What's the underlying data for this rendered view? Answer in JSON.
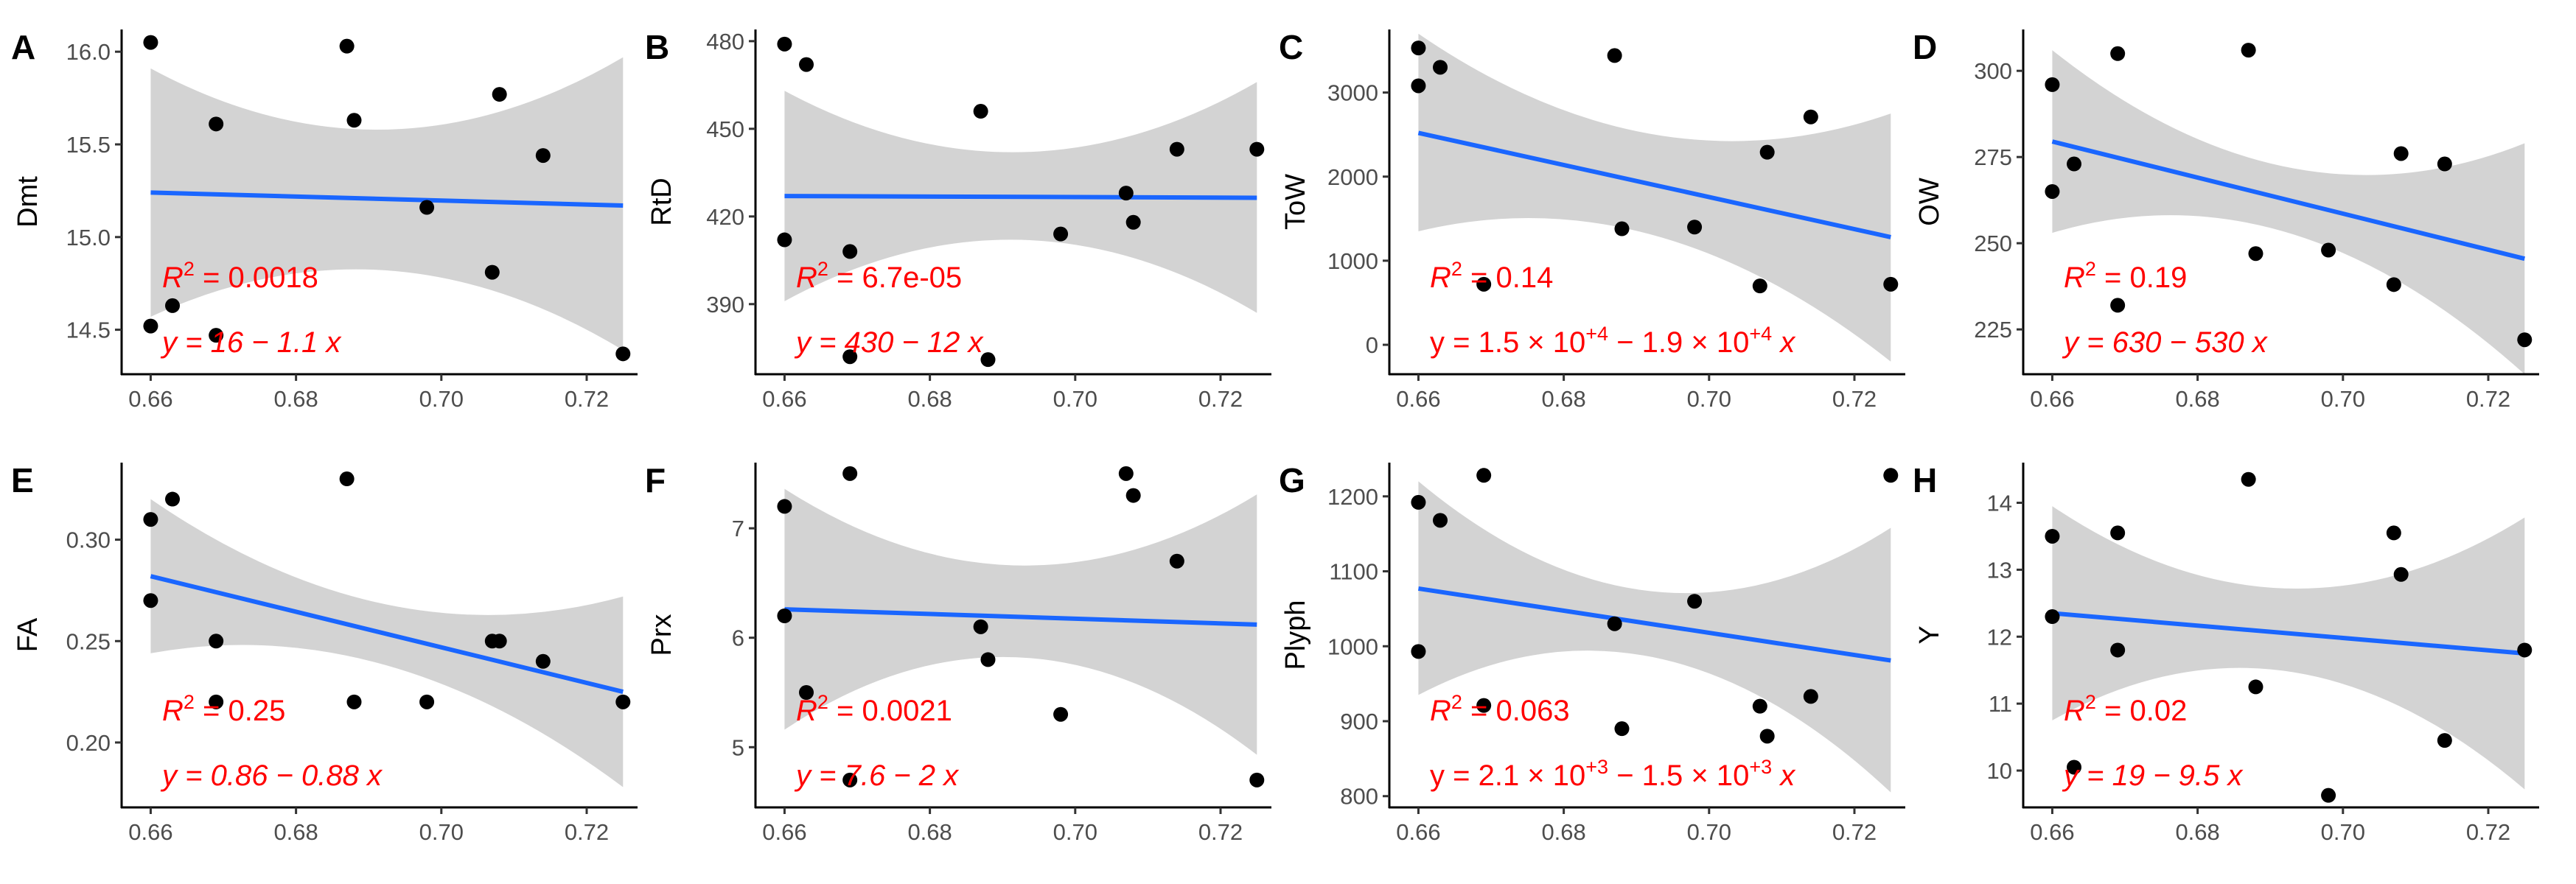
{
  "colors": {
    "fit_line": "#1a66ff",
    "band": "#d3d3d3",
    "points": "#000000",
    "annotation": "#ff0000"
  },
  "chart_data": [
    {
      "type": "scatter",
      "panel": "A",
      "ylabel": "Dmt",
      "xlim": [
        0.656,
        0.727
      ],
      "ylim": [
        14.26,
        16.12
      ],
      "xticks": [
        0.66,
        0.68,
        0.7,
        0.72
      ],
      "xtick_labels": [
        "0.66",
        "0.68",
        "0.70",
        "0.72"
      ],
      "yticks": [
        14.5,
        15.0,
        15.5,
        16.0
      ],
      "ytick_labels": [
        "14.5",
        "15.0",
        "15.5",
        "16.0"
      ],
      "x": [
        0.66,
        0.66,
        0.663,
        0.669,
        0.669,
        0.687,
        0.688,
        0.698,
        0.707,
        0.708,
        0.714,
        0.725
      ],
      "y": [
        16.05,
        14.52,
        14.63,
        14.47,
        15.61,
        16.03,
        15.63,
        15.16,
        14.81,
        15.77,
        15.44,
        14.37
      ],
      "fit": {
        "x": [
          0.66,
          0.725
        ],
        "y": [
          15.24,
          15.17
        ]
      },
      "band": {
        "x": [
          0.66,
          0.6925,
          0.725
        ],
        "upper": [
          15.91,
          15.58,
          15.97
        ],
        "lower": [
          14.57,
          14.82,
          14.39
        ]
      },
      "r2_label": "R",
      "r2_sup": "2",
      "r2_value": " = 0.0018",
      "equation": "y = 16 − 1.1 x"
    },
    {
      "type": "scatter",
      "panel": "B",
      "ylabel": "RtD",
      "xlim": [
        0.656,
        0.727
      ],
      "ylim": [
        366,
        484
      ],
      "xticks": [
        0.66,
        0.68,
        0.7,
        0.72
      ],
      "xtick_labels": [
        "0.66",
        "0.68",
        "0.70",
        "0.72"
      ],
      "yticks": [
        390,
        420,
        450,
        480
      ],
      "ytick_labels": [
        "390",
        "420",
        "450",
        "480"
      ],
      "x": [
        0.66,
        0.66,
        0.663,
        0.669,
        0.669,
        0.687,
        0.688,
        0.698,
        0.707,
        0.708,
        0.714,
        0.725
      ],
      "y": [
        479,
        412,
        472,
        408,
        372,
        456,
        371,
        414,
        428,
        418,
        443,
        443
      ],
      "fit": {
        "x": [
          0.66,
          0.725
        ],
        "y": [
          427.0,
          426.4
        ]
      },
      "band": {
        "x": [
          0.66,
          0.6925,
          0.725
        ],
        "upper": [
          463,
          442,
          466
        ],
        "lower": [
          391,
          412,
          387
        ]
      },
      "r2_label": "R",
      "r2_sup": "2",
      "r2_value": " = 6.7e-05",
      "equation": "y = 430 − 12 x"
    },
    {
      "type": "scatter",
      "panel": "C",
      "ylabel": "ToW",
      "xlim": [
        0.656,
        0.727
      ],
      "ylim": [
        -350,
        3750
      ],
      "xticks": [
        0.66,
        0.68,
        0.7,
        0.72
      ],
      "xtick_labels": [
        "0.66",
        "0.68",
        "0.70",
        "0.72"
      ],
      "yticks": [
        0,
        1000,
        2000,
        3000
      ],
      "ytick_labels": [
        "0",
        "1000",
        "2000",
        "3000"
      ],
      "x": [
        0.66,
        0.66,
        0.663,
        0.669,
        0.687,
        0.688,
        0.698,
        0.707,
        0.708,
        0.714,
        0.725
      ],
      "y": [
        3530,
        3080,
        3300,
        720,
        3440,
        1380,
        1400,
        700,
        2290,
        2710,
        720
      ],
      "fit": {
        "x": [
          0.66,
          0.725
        ],
        "y": [
          2520,
          1280
        ]
      },
      "band": {
        "x": [
          0.66,
          0.6925,
          0.725
        ],
        "upper": [
          3700,
          2500,
          2750
        ],
        "lower": [
          1350,
          1300,
          -200
        ]
      },
      "r2_label": "R",
      "r2_sup": "2",
      "r2_value": " = 0.14",
      "eq_prefix": "y = 1.5 × 10",
      "eq_exp1": "+4",
      "eq_mid": " − 1.9 × 10",
      "eq_exp2": "+4",
      "eq_suffix": " x"
    },
    {
      "type": "scatter",
      "panel": "D",
      "ylabel": "OW",
      "xlim": [
        0.656,
        0.727
      ],
      "ylim": [
        212,
        312
      ],
      "xticks": [
        0.66,
        0.68,
        0.7,
        0.72
      ],
      "xtick_labels": [
        "0.66",
        "0.68",
        "0.70",
        "0.72"
      ],
      "yticks": [
        225,
        250,
        275,
        300
      ],
      "ytick_labels": [
        "225",
        "250",
        "275",
        "300"
      ],
      "x": [
        0.66,
        0.66,
        0.663,
        0.669,
        0.669,
        0.687,
        0.688,
        0.698,
        0.707,
        0.708,
        0.714,
        0.725
      ],
      "y": [
        296,
        265,
        273,
        305,
        232,
        306,
        247,
        248,
        238,
        276,
        273,
        222
      ],
      "fit": {
        "x": [
          0.66,
          0.725
        ],
        "y": [
          279.5,
          245.5
        ]
      },
      "band": {
        "x": [
          0.66,
          0.6925,
          0.725
        ],
        "upper": [
          306,
          272,
          279
        ],
        "lower": [
          253,
          253,
          212
        ]
      },
      "r2_label": "R",
      "r2_sup": "2",
      "r2_value": " = 0.19",
      "equation": "y = 630 − 530 x"
    },
    {
      "type": "scatter",
      "panel": "E",
      "ylabel": "FA",
      "xlim": [
        0.656,
        0.727
      ],
      "ylim": [
        0.168,
        0.338
      ],
      "xticks": [
        0.66,
        0.68,
        0.7,
        0.72
      ],
      "xtick_labels": [
        "0.66",
        "0.68",
        "0.70",
        "0.72"
      ],
      "yticks": [
        0.2,
        0.25,
        0.3
      ],
      "ytick_labels": [
        "0.20",
        "0.25",
        "0.30"
      ],
      "x": [
        0.66,
        0.66,
        0.663,
        0.669,
        0.669,
        0.687,
        0.688,
        0.698,
        0.707,
        0.708,
        0.714,
        0.725
      ],
      "y": [
        0.31,
        0.27,
        0.32,
        0.25,
        0.22,
        0.33,
        0.22,
        0.22,
        0.25,
        0.25,
        0.24,
        0.22
      ],
      "fit": {
        "x": [
          0.66,
          0.725
        ],
        "y": [
          0.282,
          0.225
        ]
      },
      "band": {
        "x": [
          0.66,
          0.6925,
          0.725
        ],
        "upper": [
          0.32,
          0.268,
          0.272
        ],
        "lower": [
          0.244,
          0.238,
          0.178
        ]
      },
      "r2_label": "R",
      "r2_sup": "2",
      "r2_value": " = 0.25",
      "equation": "y = 0.86 − 0.88 x"
    },
    {
      "type": "scatter",
      "panel": "F",
      "ylabel": "Prx",
      "xlim": [
        0.656,
        0.727
      ],
      "ylim": [
        4.45,
        7.6
      ],
      "xticks": [
        0.66,
        0.68,
        0.7,
        0.72
      ],
      "xtick_labels": [
        "0.66",
        "0.68",
        "0.70",
        "0.72"
      ],
      "yticks": [
        5,
        6,
        7
      ],
      "ytick_labels": [
        "5",
        "6",
        "7"
      ],
      "x": [
        0.66,
        0.66,
        0.663,
        0.669,
        0.669,
        0.687,
        0.688,
        0.698,
        0.707,
        0.708,
        0.714,
        0.725
      ],
      "y": [
        7.2,
        6.2,
        5.5,
        7.5,
        4.7,
        6.1,
        5.8,
        5.3,
        7.5,
        7.3,
        6.7,
        4.7
      ],
      "fit": {
        "x": [
          0.66,
          0.725
        ],
        "y": [
          6.26,
          6.12
        ]
      },
      "band": {
        "x": [
          0.66,
          0.6925,
          0.725
        ],
        "upper": [
          7.36,
          6.66,
          7.31
        ],
        "lower": [
          5.16,
          5.82,
          4.93
        ]
      },
      "r2_label": "R",
      "r2_sup": "2",
      "r2_value": " = 0.0021",
      "equation": "y = 7.6 − 2 x"
    },
    {
      "type": "scatter",
      "panel": "G",
      "ylabel": "Plyph",
      "xlim": [
        0.656,
        0.727
      ],
      "ylim": [
        785,
        1245
      ],
      "xticks": [
        0.66,
        0.68,
        0.7,
        0.72
      ],
      "xtick_labels": [
        "0.66",
        "0.68",
        "0.70",
        "0.72"
      ],
      "yticks": [
        800,
        900,
        1000,
        1100,
        1200
      ],
      "ytick_labels": [
        "800",
        "900",
        "1000",
        "1100",
        "1200"
      ],
      "x": [
        0.66,
        0.66,
        0.663,
        0.669,
        0.669,
        0.687,
        0.688,
        0.698,
        0.707,
        0.708,
        0.714,
        0.725
      ],
      "y": [
        1192,
        993,
        1168,
        1228,
        921,
        1030,
        890,
        1060,
        920,
        880,
        933,
        1228
      ],
      "fit": {
        "x": [
          0.66,
          0.725
        ],
        "y": [
          1077,
          981
        ]
      },
      "band": {
        "x": [
          0.66,
          0.6925,
          0.725
        ],
        "upper": [
          1220,
          1073,
          1158
        ],
        "lower": [
          935,
          985,
          805
        ]
      },
      "r2_label": "R",
      "r2_sup": "2",
      "r2_value": " = 0.063",
      "eq_prefix": "y = 2.1 × 10",
      "eq_exp1": "+3",
      "eq_mid": " − 1.5 × 10",
      "eq_exp2": "+3",
      "eq_suffix": " x"
    },
    {
      "type": "scatter",
      "panel": "H",
      "ylabel": "Y",
      "xlim": [
        0.656,
        0.727
      ],
      "ylim": [
        9.45,
        14.6
      ],
      "xticks": [
        0.66,
        0.68,
        0.7,
        0.72
      ],
      "xtick_labels": [
        "0.66",
        "0.68",
        "0.70",
        "0.72"
      ],
      "yticks": [
        10,
        11,
        12,
        13,
        14
      ],
      "ytick_labels": [
        "10",
        "11",
        "12",
        "13",
        "14"
      ],
      "x": [
        0.66,
        0.66,
        0.663,
        0.669,
        0.669,
        0.687,
        0.688,
        0.698,
        0.707,
        0.708,
        0.714,
        0.725
      ],
      "y": [
        13.5,
        12.3,
        10.05,
        13.55,
        11.8,
        14.35,
        11.25,
        9.63,
        13.55,
        12.93,
        10.45,
        11.8
      ],
      "fit": {
        "x": [
          0.66,
          0.725
        ],
        "y": [
          12.35,
          11.75
        ]
      },
      "band": {
        "x": [
          0.66,
          0.6925,
          0.725
        ],
        "upper": [
          13.95,
          12.72,
          13.78
        ],
        "lower": [
          10.75,
          11.48,
          9.72
        ]
      },
      "r2_label": "R",
      "r2_sup": "2",
      "r2_value": " = 0.02",
      "equation": "y = 19 − 9.5 x"
    }
  ]
}
